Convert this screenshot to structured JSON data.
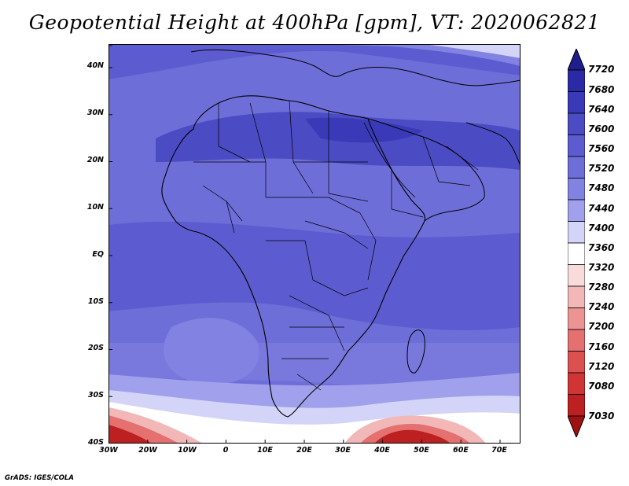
{
  "title": "Geopotential Height at 400hPa [gpm], VT: 2020062821",
  "footer": "GrADS: IGES/COLA",
  "map": {
    "lat_labels": [
      "40N",
      "30N",
      "20N",
      "10N",
      "EQ",
      "10S",
      "20S",
      "30S",
      "40S"
    ],
    "lon_labels": [
      "30W",
      "20W",
      "10W",
      "0",
      "10E",
      "20E",
      "30E",
      "40E",
      "50E",
      "60E",
      "70E"
    ],
    "extent": {
      "lon_min": -30,
      "lon_max": 75,
      "lat_min": -40,
      "lat_max": 45
    }
  },
  "colorbar": {
    "labels": [
      "7720",
      "7680",
      "7640",
      "7600",
      "7560",
      "7520",
      "7480",
      "7440",
      "7400",
      "7360",
      "7320",
      "7280",
      "7240",
      "7200",
      "7160",
      "7120",
      "7080",
      "7030"
    ],
    "colors": [
      "#1e1e8c",
      "#2a2aa6",
      "#3a3ab8",
      "#4b4bc4",
      "#5c5cd0",
      "#6e6ed9",
      "#8282e2",
      "#a0a0ec",
      "#d4d4f8",
      "#ffffff",
      "#f8dcdc",
      "#f2b8b8",
      "#ec9494",
      "#e47070",
      "#dc5050",
      "#d03434",
      "#bc2020",
      "#a01212"
    ]
  }
}
